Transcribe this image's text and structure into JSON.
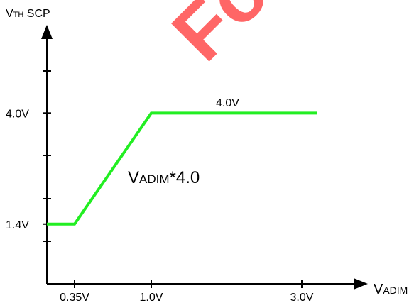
{
  "chart_data": {
    "type": "line",
    "y_label": [
      "V",
      "TH",
      " SCP"
    ],
    "x_label": [
      "V",
      "ADIM"
    ],
    "x": [
      0,
      0.35,
      1.0,
      3.2
    ],
    "series": [
      {
        "name": "VTH SCP",
        "color": "#22ee22",
        "values": [
          1.4,
          1.4,
          4.0,
          4.0
        ]
      }
    ],
    "xlim": [
      0,
      3.7
    ],
    "xticks": [
      {
        "value": 0.35,
        "label": "0.35V"
      },
      {
        "value": 1.0,
        "label": "1.0V"
      },
      {
        "value": 3.0,
        "label": "3.0V"
      }
    ],
    "ylim": [
      0,
      5.9
    ],
    "yticks": [
      {
        "value": 1.4,
        "label": "1.4V"
      },
      {
        "value": 4.0,
        "label": "4.0V"
      }
    ],
    "annotations": [
      "4.0V",
      [
        "V",
        "ADIM",
        "*4.0"
      ]
    ],
    "watermark": "Fo"
  }
}
